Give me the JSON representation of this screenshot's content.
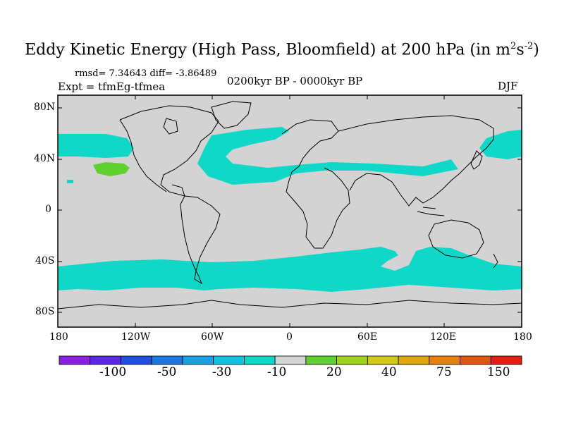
{
  "title": {
    "main": "Eddy Kinetic Energy (High Pass, Bloomfield) at 200 hPa (in m",
    "sup1": "2",
    "mid": "s",
    "sup2": "-2",
    "end": ")"
  },
  "stats": "rmsd= 7.34643 diff= -3.86489",
  "expt": "Expt = tfmEg-tfmea",
  "period": "0200kyr BP - 0000kyr BP",
  "season": "DJF",
  "lat_labels": [
    "80N",
    "40N",
    "0",
    "40S",
    "80S"
  ],
  "lon_labels": [
    "180",
    "120W",
    "60W",
    "0",
    "60E",
    "120E",
    "180"
  ],
  "colorbar": {
    "colors": [
      "#8a1fe0",
      "#5a28e0",
      "#2050e0",
      "#1a78e0",
      "#18a0e0",
      "#14c0e0",
      "#10d8c8",
      "#d3d3d3",
      "#60d030",
      "#a0d020",
      "#d0c818",
      "#e0a810",
      "#e88010",
      "#e05810",
      "#e02010"
    ],
    "labels": [
      "-100",
      "-50",
      "-30",
      "-10",
      "20",
      "40",
      "75",
      "150"
    ]
  },
  "colors": {
    "background": "#d3d3d3",
    "negative_small": "#10d8c8",
    "positive_small": "#60d030"
  }
}
